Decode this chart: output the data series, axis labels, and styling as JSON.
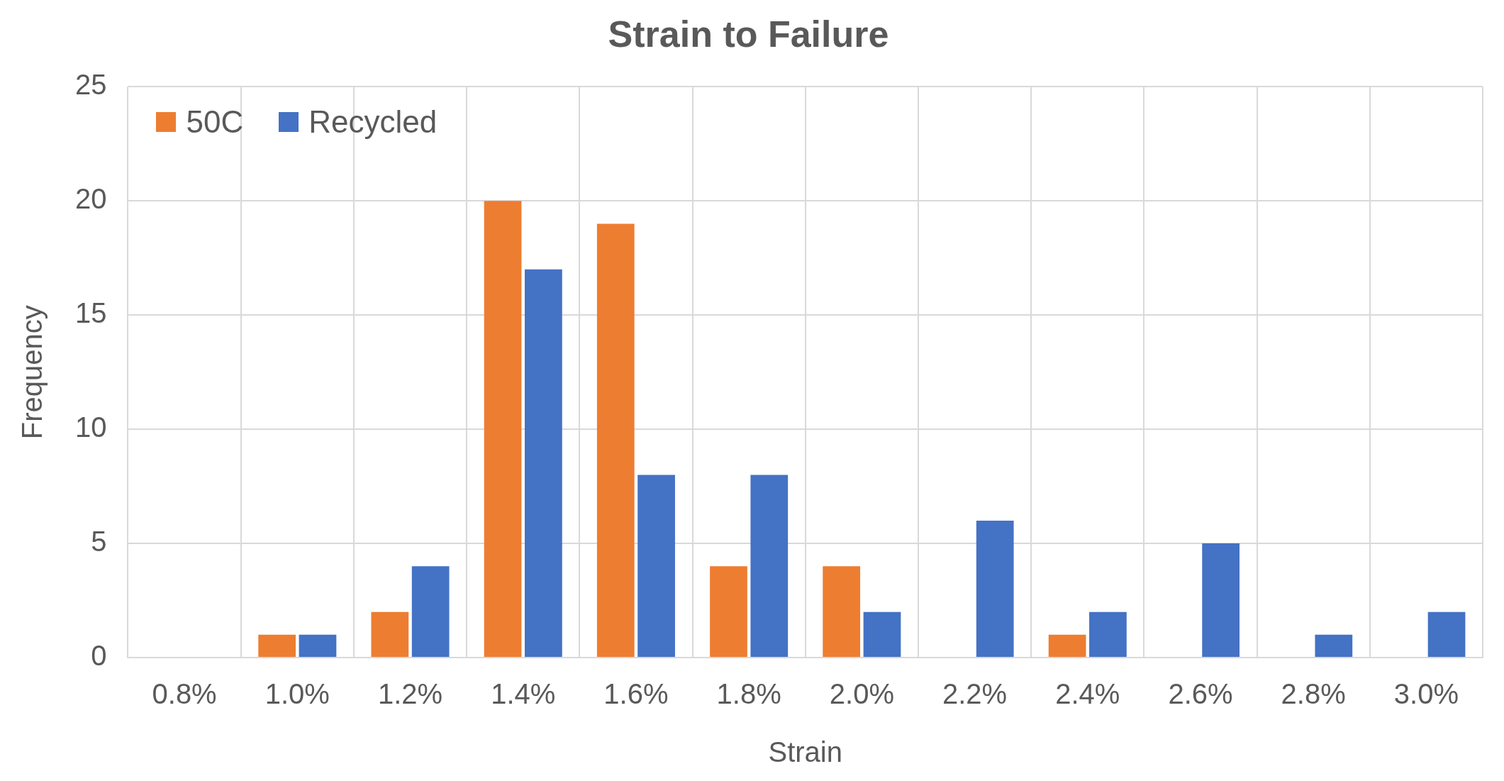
{
  "chart_data": {
    "type": "bar",
    "title": "Strain to Failure",
    "xlabel": "Strain",
    "ylabel": "Frequency",
    "categories": [
      "0.8%",
      "1.0%",
      "1.2%",
      "1.4%",
      "1.6%",
      "1.8%",
      "2.0%",
      "2.2%",
      "2.4%",
      "2.6%",
      "2.8%",
      "3.0%"
    ],
    "series": [
      {
        "name": "50C",
        "color": "#ed7d31",
        "values": [
          0,
          1,
          2,
          20,
          19,
          4,
          4,
          0,
          1,
          0,
          0,
          0
        ]
      },
      {
        "name": "Recycled",
        "color": "#4472c4",
        "values": [
          0,
          1,
          4,
          17,
          8,
          8,
          2,
          6,
          2,
          5,
          1,
          2
        ]
      }
    ],
    "ylim": [
      0,
      25
    ],
    "yticks": [
      0,
      5,
      10,
      15,
      20,
      25
    ],
    "grid": true,
    "legend": "top left"
  }
}
